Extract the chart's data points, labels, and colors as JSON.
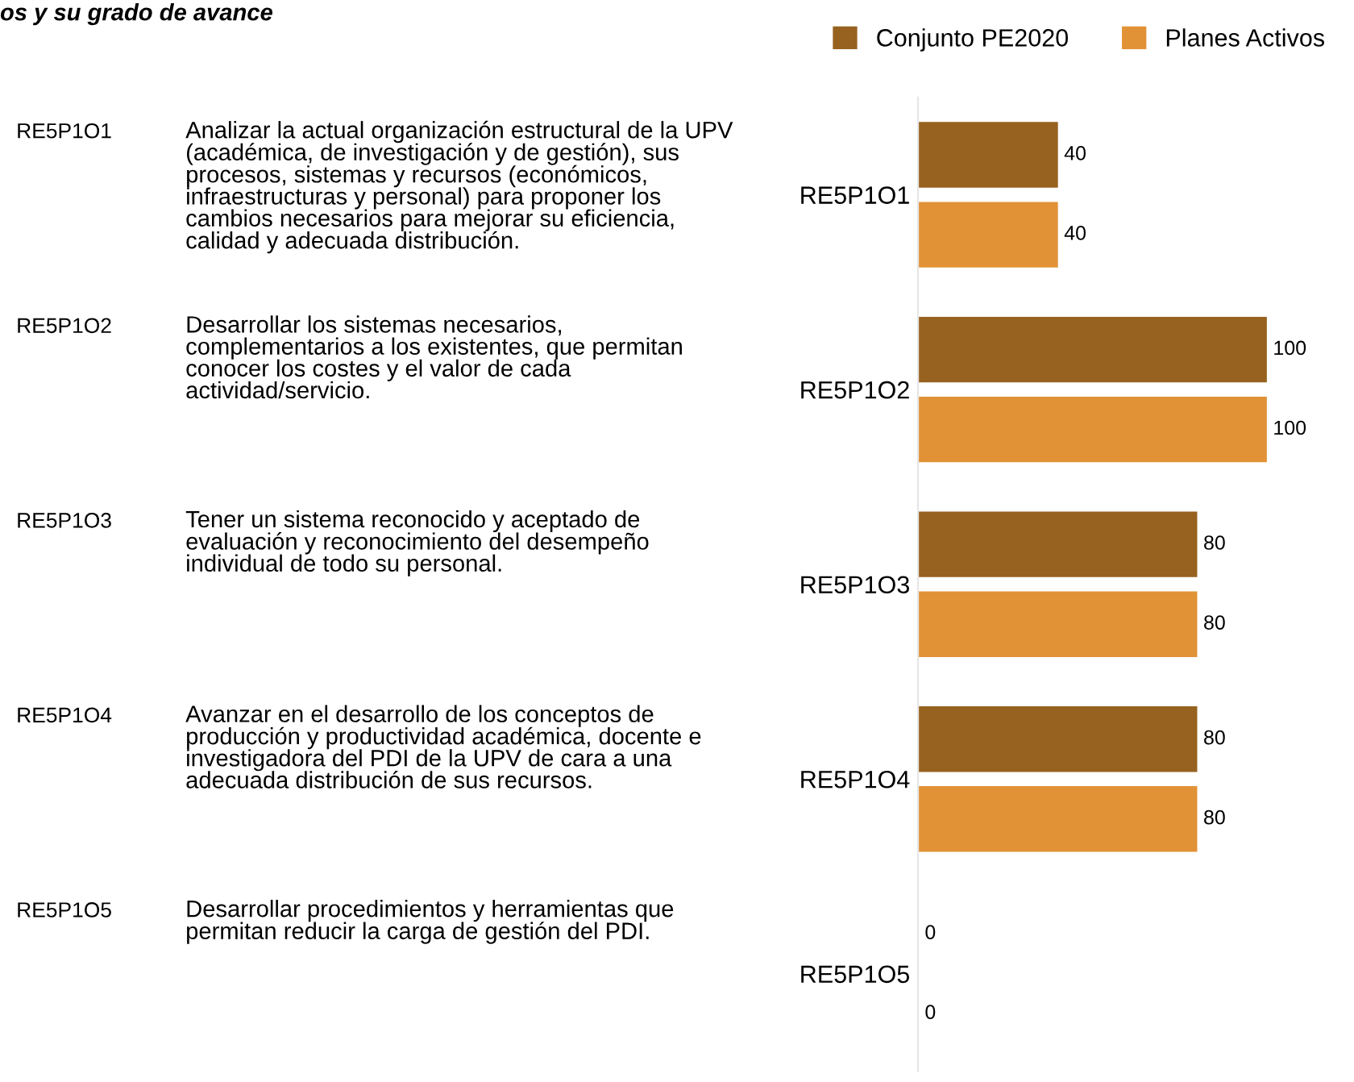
{
  "chart_data": {
    "type": "bar",
    "orientation": "horizontal",
    "title": "os y su grado de avance",
    "categories": [
      "RE5P1O1",
      "RE5P1O2",
      "RE5P1O3",
      "RE5P1O4",
      "RE5P1O5"
    ],
    "series": [
      {
        "name": "Conjunto PE2020",
        "color": "#97621f",
        "values": [
          40,
          100,
          80,
          80,
          0
        ]
      },
      {
        "name": "Planes Activos",
        "color": "#e19236",
        "values": [
          40,
          100,
          80,
          80,
          0
        ]
      }
    ],
    "data_labels": true,
    "legend": "top right",
    "grid": false,
    "tick_labels": "y",
    "annotations": [
      "Analizar la actual organización estructural de la UPV\n(académica, de investigación y de gestión), sus\nprocesos, sistemas y recursos (económicos,\ninfraestructuras y personal) para proponer los\ncambios necesarios para mejorar su eficiencia,\ncalidad y adecuada distribución.",
      "Desarrollar los sistemas necesarios,\ncomplementarios a los existentes, que permitan\nconocer los costes y el valor de cada\nactividad/servicio.",
      "Tener un sistema reconocido y aceptado de\nevaluación y reconocimiento del desempeño\nindividual de todo su personal.",
      "Avanzar en el desarrollo de los conceptos de\nproducción y productividad académica, docente e\ninvestigadora del PDI de la UPV de cara a una\nadecuada distribución de sus recursos.",
      "Desarrollar procedimientos y herramientas que\npermitan reducir la carga de gestión del PDI."
    ]
  }
}
